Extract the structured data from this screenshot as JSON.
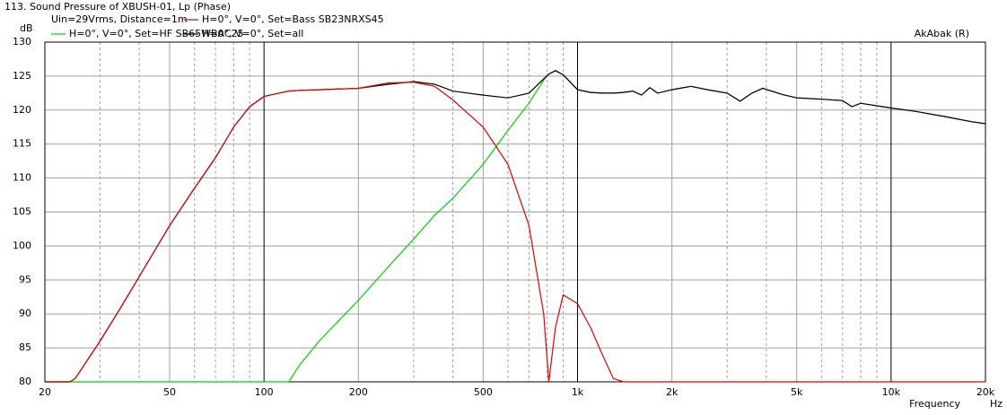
{
  "chart_data": {
    "type": "line",
    "title": "113. Sound Pressure of XBUSH-01, Lp (Phase)",
    "subtitle": "Uin=29Vrms, Distance=1m",
    "annotation": "AkAbak (R)",
    "ylabel": "dB",
    "xlabel": "Frequency",
    "xunit": "Hz",
    "log_x": true,
    "grid": true,
    "xlim": [
      20,
      20000
    ],
    "ylim": [
      80,
      130
    ],
    "xticks": [
      20,
      50,
      100,
      200,
      500,
      {
        "value": 1000,
        "label": "1k"
      },
      {
        "value": 2000,
        "label": "2k"
      },
      {
        "value": 5000,
        "label": "5k"
      },
      {
        "value": 10000,
        "label": "10k"
      },
      {
        "value": 20000,
        "label": "20k"
      }
    ],
    "xminor": [
      30,
      40,
      60,
      70,
      80,
      90,
      300,
      400,
      600,
      700,
      800,
      900,
      3000,
      4000,
      6000,
      7000,
      8000,
      9000
    ],
    "yticks": [
      80,
      85,
      90,
      95,
      100,
      105,
      110,
      115,
      120,
      125,
      130
    ],
    "x": [
      20,
      24,
      25,
      30,
      35,
      40,
      50,
      60,
      70,
      80,
      90,
      100,
      120,
      130,
      150,
      200,
      250,
      300,
      350,
      400,
      500,
      600,
      700,
      780,
      810,
      850,
      900,
      1000,
      1100,
      1200,
      1300,
      1400,
      1500,
      1600,
      1700,
      1800,
      2000,
      2300,
      2600,
      3000,
      3300,
      3600,
      3900,
      4500,
      5000,
      6000,
      7000,
      7500,
      8000,
      10000,
      12000,
      15000,
      18000,
      20000
    ],
    "series": [
      {
        "name": "H=0°, V=0°, Set=HF SB65WBAC25",
        "color": "#00d000",
        "values": [
          80,
          80,
          80,
          80,
          80,
          80,
          80,
          80,
          80,
          80,
          80,
          80,
          80,
          82.5,
          86,
          92,
          97,
          101,
          104.5,
          107,
          112,
          117,
          121,
          124.4,
          125.3,
          125.8,
          125.2,
          123,
          122.6,
          122.5,
          122.5,
          122.6,
          122.8,
          122.2,
          123.3,
          122.5,
          123,
          123.5,
          123,
          122.5,
          121.3,
          122.5,
          123.2,
          122.3,
          121.8,
          121.6,
          121.4,
          120.5,
          121,
          120.3,
          119.8,
          119,
          118.3,
          118
        ]
      },
      {
        "name": "H=0°, V=0°, Set=all",
        "color": "#000000",
        "values": [
          80,
          80,
          80.5,
          86,
          91,
          95.5,
          103,
          108.5,
          113,
          117.5,
          120.5,
          122,
          122.8,
          122.9,
          123,
          123.2,
          123.8,
          124.2,
          123.8,
          122.8,
          122.2,
          121.8,
          122.5,
          124.6,
          125.3,
          125.8,
          125.2,
          123,
          122.6,
          122.5,
          122.5,
          122.6,
          122.8,
          122.2,
          123.3,
          122.5,
          123,
          123.5,
          123,
          122.5,
          121.3,
          122.5,
          123.2,
          122.3,
          121.8,
          121.6,
          121.4,
          120.5,
          121,
          120.3,
          119.8,
          119,
          118.3,
          118
        ]
      },
      {
        "name": "H=0°, V=0°, Set=Bass SB23NRXS45",
        "color": "#e00000",
        "values": [
          80,
          80,
          80.5,
          86,
          91,
          95.5,
          103,
          108.5,
          113,
          117.5,
          120.5,
          122,
          122.8,
          122.9,
          123,
          123.2,
          124,
          124.1,
          123.5,
          121.5,
          117.5,
          112,
          103,
          90,
          80,
          88,
          92.8,
          91.5,
          88,
          84,
          80.5,
          80,
          80,
          80,
          80,
          80,
          80,
          80,
          80,
          80,
          80,
          80,
          80,
          80,
          80,
          80,
          80,
          80,
          80,
          80,
          80,
          80,
          80,
          80
        ]
      }
    ]
  }
}
